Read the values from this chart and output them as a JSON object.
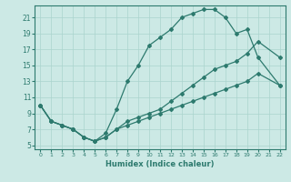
{
  "xlabel": "Humidex (Indice chaleur)",
  "xlim": [
    -0.5,
    22.5
  ],
  "ylim": [
    4.5,
    22.5
  ],
  "xticks": [
    0,
    1,
    2,
    3,
    4,
    5,
    6,
    7,
    8,
    9,
    10,
    11,
    12,
    13,
    14,
    15,
    16,
    17,
    18,
    19,
    20,
    21,
    22
  ],
  "yticks": [
    5,
    7,
    9,
    11,
    13,
    15,
    17,
    19,
    21
  ],
  "background_color": "#cce9e5",
  "grid_color": "#aad4ce",
  "line_color": "#2d7a6e",
  "line1_x": [
    0,
    1,
    2,
    3,
    4,
    5,
    6,
    7,
    8,
    9,
    10,
    11,
    12,
    13,
    14,
    15,
    16,
    17,
    18,
    19,
    20,
    22
  ],
  "line1_y": [
    10,
    8,
    7.5,
    7,
    6,
    5.5,
    6.5,
    9.5,
    13,
    15,
    17.5,
    18.5,
    19.5,
    21,
    21.5,
    22,
    22,
    21,
    19,
    19.5,
    16,
    12.5
  ],
  "line2_x": [
    0,
    1,
    2,
    3,
    4,
    5,
    6,
    7,
    8,
    9,
    10,
    11,
    12,
    13,
    14,
    15,
    16,
    17,
    18,
    19,
    20,
    22
  ],
  "line2_y": [
    10,
    8,
    7.5,
    7,
    6,
    5.5,
    6,
    7,
    8,
    8.5,
    9,
    9.5,
    10.5,
    11.5,
    12.5,
    13.5,
    14.5,
    15,
    15.5,
    16.5,
    18,
    16
  ],
  "line3_x": [
    0,
    1,
    2,
    3,
    4,
    5,
    6,
    7,
    8,
    9,
    10,
    11,
    12,
    13,
    14,
    15,
    16,
    17,
    18,
    19,
    20,
    22
  ],
  "line3_y": [
    10,
    8,
    7.5,
    7,
    6,
    5.5,
    6,
    7,
    7.5,
    8,
    8.5,
    9,
    9.5,
    10,
    10.5,
    11,
    11.5,
    12,
    12.5,
    13,
    14,
    12.5
  ]
}
